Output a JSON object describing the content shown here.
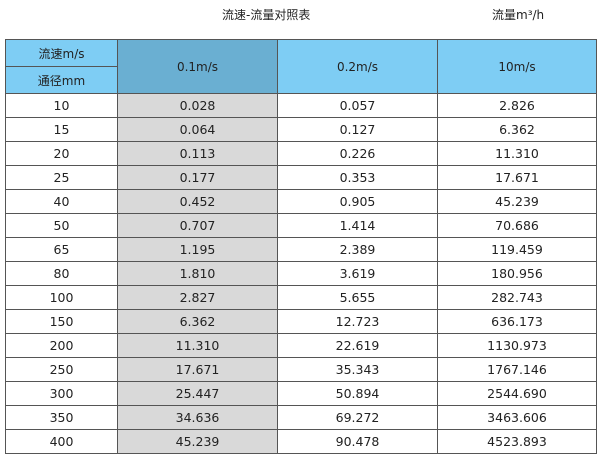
{
  "title": "流速-流量对照表",
  "unit": "流量m³/h",
  "header": {
    "velocity_label": "流速m/s",
    "diameter_label": "通径mm",
    "columns": [
      "0.1m/s",
      "0.2m/s",
      "10m/s"
    ]
  },
  "rows": [
    [
      "10",
      "0.028",
      "0.057",
      "2.826"
    ],
    [
      "15",
      "0.064",
      "0.127",
      "6.362"
    ],
    [
      "20",
      "0.113",
      "0.226",
      "11.310"
    ],
    [
      "25",
      "0.177",
      "0.353",
      "17.671"
    ],
    [
      "40",
      "0.452",
      "0.905",
      "45.239"
    ],
    [
      "50",
      "0.707",
      "1.414",
      "70.686"
    ],
    [
      "65",
      "1.195",
      "2.389",
      "119.459"
    ],
    [
      "80",
      "1.810",
      "3.619",
      "180.956"
    ],
    [
      "100",
      "2.827",
      "5.655",
      "282.743"
    ],
    [
      "150",
      "6.362",
      "12.723",
      "636.173"
    ],
    [
      "200",
      "11.310",
      "22.619",
      "1130.973"
    ],
    [
      "250",
      "17.671",
      "35.343",
      "1767.146"
    ],
    [
      "300",
      "25.447",
      "50.894",
      "2544.690"
    ],
    [
      "350",
      "34.636",
      "69.272",
      "3463.606"
    ],
    [
      "400",
      "45.239",
      "90.478",
      "4523.893"
    ]
  ]
}
